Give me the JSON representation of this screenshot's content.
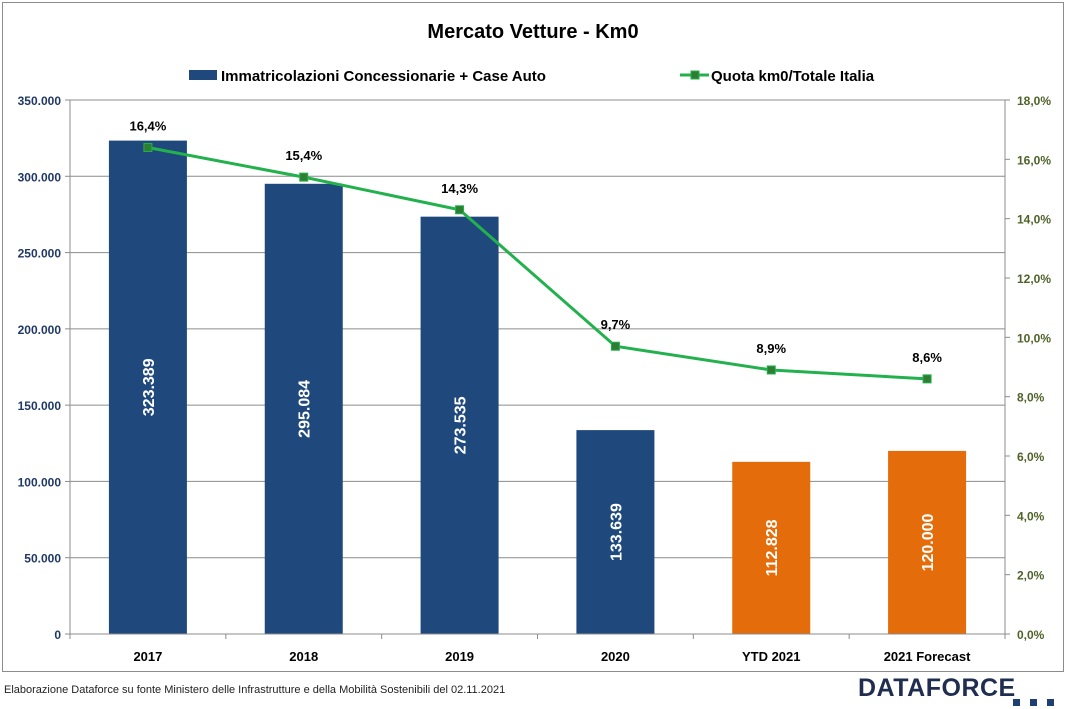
{
  "chart_data": {
    "type": "bar",
    "title": "Mercato Vetture - Km0",
    "categories": [
      "2017",
      "2018",
      "2019",
      "2020",
      "YTD 2021",
      "2021 Forecast"
    ],
    "series": [
      {
        "name": "Immatricolazioni Concessionarie + Case Auto",
        "type": "bar",
        "axis": "left",
        "values": [
          323389,
          295084,
          273535,
          133639,
          112828,
          120000
        ],
        "labels": [
          "323.389",
          "295.084",
          "273.535",
          "133.639",
          "112.828",
          "120.000"
        ],
        "colors": [
          "#1f497d",
          "#1f497d",
          "#1f497d",
          "#1f497d",
          "#e46c0a",
          "#e46c0a"
        ]
      },
      {
        "name": "Quota km0/Totale Italia",
        "type": "line",
        "axis": "right",
        "values": [
          16.4,
          15.4,
          14.3,
          9.7,
          8.9,
          8.6
        ],
        "labels": [
          "16,4%",
          "15,4%",
          "14,3%",
          "9,7%",
          "8,9%",
          "8,6%"
        ],
        "color": "#22b14c",
        "marker_color": "#2e7d32"
      }
    ],
    "y_left": {
      "ylim": [
        0,
        350000
      ],
      "ticks": [
        "0",
        "50.000",
        "100.000",
        "150.000",
        "200.000",
        "250.000",
        "300.000",
        "350.000"
      ],
      "color": "#1f3864"
    },
    "y_right": {
      "ylim": [
        0,
        18
      ],
      "ticks": [
        "0,0%",
        "2,0%",
        "4,0%",
        "6,0%",
        "8,0%",
        "10,0%",
        "12,0%",
        "14,0%",
        "16,0%",
        "18,0%"
      ],
      "color": "#4f6228"
    },
    "grid": true,
    "legend_position": "top"
  },
  "footer": {
    "note": "Elaborazione Dataforce su fonte Ministero delle Infrastrutture e della Mobilità Sostenibili del 02.11.2021",
    "logo": "DATAFORCE"
  }
}
